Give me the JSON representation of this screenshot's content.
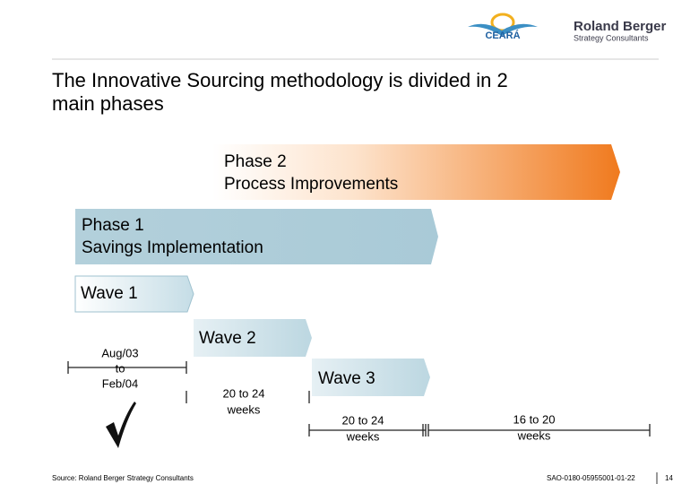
{
  "header": {
    "client_logo": "CEARÁ",
    "firm_name": "Roland Berger",
    "firm_tagline": "Strategy Consultants"
  },
  "title": [
    "The Innovative Sourcing methodology is divided in 2",
    "main phases"
  ],
  "phases": [
    {
      "lines": [
        "Phase 2",
        "Process Improvements"
      ]
    },
    {
      "lines": [
        "Phase 1",
        "Savings Implementation"
      ]
    }
  ],
  "waves": [
    "Wave 1",
    "Wave 2",
    "Wave 3"
  ],
  "durations": [
    {
      "lines": [
        "Aug/03",
        "to",
        "Feb/04"
      ]
    },
    {
      "lines": [
        "20 to 24",
        "weeks"
      ]
    },
    {
      "lines": [
        "20 to 24",
        "weeks"
      ]
    },
    {
      "lines": [
        "16 to 20",
        "weeks"
      ]
    }
  ],
  "footer": {
    "source": "Source: Roland Berger Strategy Consultants",
    "code": "SAO-0180-05955001-01-22",
    "page": "14"
  }
}
